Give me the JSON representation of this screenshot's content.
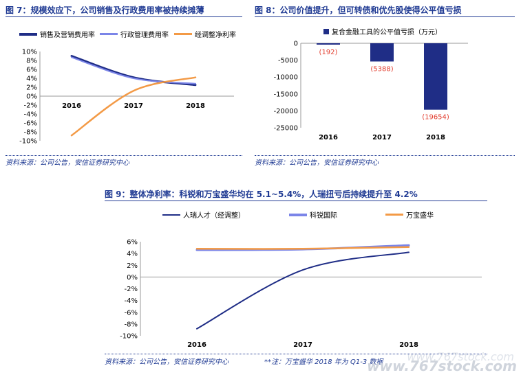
{
  "figures": {
    "fig7": {
      "title": "图 7：规模效应下，公司销售及行政费用率被持续摊薄",
      "source": "资料来源：公司公告，安信证券研究中心"
    },
    "fig8": {
      "title": "图 8：公司价值提升，但可转债和优先股使得公平值亏损",
      "source": "资料来源：公司公告，安信证券研究中心"
    },
    "fig9": {
      "title": "图 9：整体净利率：科锐和万宝盛华均在 5.1~5.4%，人瑞扭亏后持续提升至 4.2%",
      "source": "资料来源：公司公告，安信证券研究中心",
      "note": "**注：万宝盛华 2018 年为 Q1-3 数据"
    }
  },
  "watermark": {
    "main": "www.767stock.com",
    "sub": "www.767stock.com"
  },
  "colors": {
    "navy": "#1f2d86",
    "lavender": "#7b85e8",
    "orange": "#f39a46",
    "title": "#1f3a93"
  },
  "chart_data": [
    {
      "id": "fig7",
      "type": "line",
      "categories": [
        "2016",
        "2017",
        "2018"
      ],
      "series": [
        {
          "name": "销售及营销费用率",
          "values": [
            9.0,
            4.2,
            2.5
          ],
          "color": "#1f2d86",
          "width": 3
        },
        {
          "name": "行政管理费用率",
          "values": [
            8.7,
            4.0,
            2.8
          ],
          "color": "#7b85e8",
          "width": 2
        },
        {
          "name": "经调整净利率",
          "values": [
            -8.8,
            1.2,
            4.2
          ],
          "color": "#f39a46",
          "width": 2.5
        }
      ],
      "yticks": [
        "10%",
        "8%",
        "6%",
        "4%",
        "2%",
        "0%",
        "-2%",
        "-4%",
        "-6%",
        "-8%",
        "-10%"
      ],
      "ylim": [
        -10,
        10
      ],
      "legend": "top"
    },
    {
      "id": "fig8",
      "type": "bar",
      "categories": [
        "2016",
        "2017",
        "2018"
      ],
      "series": [
        {
          "name": "复合金融工具的公平值亏损（万元）",
          "values": [
            -192,
            -5388,
            -19654
          ],
          "labels": [
            "(192)",
            "(5388)",
            "(19654)"
          ]
        }
      ],
      "yticks": [
        "0",
        "-5000",
        "-10000",
        "-15000",
        "-20000",
        "-25000"
      ],
      "ylim": [
        -25000,
        0
      ],
      "legend": "top"
    },
    {
      "id": "fig9",
      "type": "line",
      "categories": [
        "2016",
        "2017",
        "2018"
      ],
      "series": [
        {
          "name": "人瑞人才（经调整）",
          "values": [
            -8.8,
            1.2,
            4.2
          ],
          "color": "#1f2d86",
          "width": 2
        },
        {
          "name": "科锐国际",
          "values": [
            4.6,
            4.7,
            5.4
          ],
          "color": "#7b85e8",
          "width": 3
        },
        {
          "name": "万宝盛华",
          "values": [
            4.8,
            4.8,
            5.1
          ],
          "color": "#f39a46",
          "width": 2.5
        }
      ],
      "yticks": [
        "6%",
        "4%",
        "2%",
        "0%",
        "-2%",
        "-4%",
        "-6%",
        "-8%",
        "-10%"
      ],
      "ylim": [
        -10,
        6
      ],
      "legend": "top"
    }
  ]
}
